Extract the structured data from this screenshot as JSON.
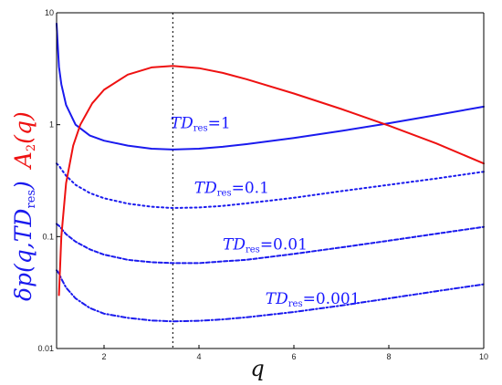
{
  "chart_data": {
    "type": "line",
    "title": "",
    "xlabel": "q",
    "ylabel": {
      "left_blue": {
        "main": "δp(q,TD",
        "sub": "res",
        "close": ")"
      },
      "left_red": {
        "main": "A",
        "sub": "2",
        "close": "(q)"
      }
    },
    "xlim": [
      1,
      10
    ],
    "ylim": [
      0.01,
      10
    ],
    "yscale": "log",
    "grid": false,
    "xticks": [
      "2",
      "4",
      "6",
      "8",
      "10"
    ],
    "yticks": [
      "0.01",
      "0.1",
      "1",
      "10"
    ],
    "vline": {
      "x": 3.45,
      "style": "dotted"
    },
    "colors": {
      "dp": "#1a1aee",
      "A2": "#ee1111",
      "vline": "#222222",
      "axis": "#000000"
    },
    "series": [
      {
        "name": "TDres=1",
        "style": "solid",
        "color": "#1a1aee",
        "x": [
          1.0,
          1.05,
          1.1,
          1.2,
          1.4,
          1.7,
          2.0,
          2.5,
          3.0,
          3.45,
          4.0,
          4.5,
          5.0,
          6.0,
          7.0,
          8.0,
          9.0,
          10.0
        ],
        "y": [
          8.0,
          3.3,
          2.3,
          1.5,
          1.0,
          0.8,
          0.72,
          0.65,
          0.61,
          0.6,
          0.61,
          0.635,
          0.67,
          0.76,
          0.88,
          1.03,
          1.22,
          1.45
        ]
      },
      {
        "name": "TDres=0.1",
        "style": "dotted",
        "color": "#1a1aee",
        "x": [
          1.0,
          1.05,
          1.1,
          1.2,
          1.4,
          1.7,
          2.0,
          2.5,
          3.0,
          3.45,
          4.0,
          4.5,
          5.0,
          6.0,
          7.0,
          8.0,
          9.0,
          10.0
        ],
        "y": [
          0.45,
          0.43,
          0.4,
          0.35,
          0.29,
          0.245,
          0.22,
          0.197,
          0.185,
          0.18,
          0.182,
          0.188,
          0.198,
          0.222,
          0.255,
          0.29,
          0.33,
          0.38
        ]
      },
      {
        "name": "TDres=0.01",
        "style": "dashed",
        "color": "#1a1aee",
        "x": [
          1.0,
          1.05,
          1.1,
          1.2,
          1.4,
          1.7,
          2.0,
          2.5,
          3.0,
          3.45,
          4.0,
          4.5,
          5.0,
          6.0,
          7.0,
          8.0,
          9.0,
          10.0
        ],
        "y": [
          0.13,
          0.125,
          0.118,
          0.105,
          0.09,
          0.077,
          0.069,
          0.062,
          0.059,
          0.058,
          0.058,
          0.06,
          0.062,
          0.07,
          0.08,
          0.092,
          0.106,
          0.122
        ]
      },
      {
        "name": "TDres=0.001",
        "style": "dashdot",
        "color": "#1a1aee",
        "x": [
          1.0,
          1.05,
          1.1,
          1.2,
          1.4,
          1.7,
          2.0,
          2.5,
          3.0,
          3.45,
          4.0,
          4.5,
          5.0,
          6.0,
          7.0,
          8.0,
          9.0,
          10.0
        ],
        "y": [
          0.05,
          0.047,
          0.042,
          0.035,
          0.028,
          0.023,
          0.0205,
          0.0188,
          0.0178,
          0.0175,
          0.0177,
          0.0182,
          0.019,
          0.0212,
          0.0242,
          0.028,
          0.0325,
          0.0375
        ]
      },
      {
        "name": "A2(q)",
        "style": "solid",
        "color": "#ee1111",
        "x": [
          1.05,
          1.1,
          1.2,
          1.35,
          1.5,
          1.75,
          2.0,
          2.5,
          3.0,
          3.45,
          4.0,
          4.5,
          5.0,
          6.0,
          7.0,
          8.0,
          9.0,
          10.0
        ],
        "y": [
          0.03,
          0.1,
          0.3,
          0.65,
          1.0,
          1.55,
          2.05,
          2.8,
          3.25,
          3.35,
          3.2,
          2.9,
          2.55,
          1.9,
          1.38,
          0.98,
          0.68,
          0.45
        ]
      }
    ],
    "annotations": [
      {
        "main": "TD",
        "sub": "res",
        "value": "=1",
        "x": 3.4,
        "y": 0.93
      },
      {
        "main": "TD",
        "sub": "res",
        "value": "=0.1",
        "x": 3.9,
        "y": 0.245
      },
      {
        "main": "TD",
        "sub": "res",
        "value": "=0.01",
        "x": 4.5,
        "y": 0.077
      },
      {
        "main": "TD",
        "sub": "res",
        "value": "=0.001",
        "x": 5.4,
        "y": 0.025
      }
    ]
  }
}
